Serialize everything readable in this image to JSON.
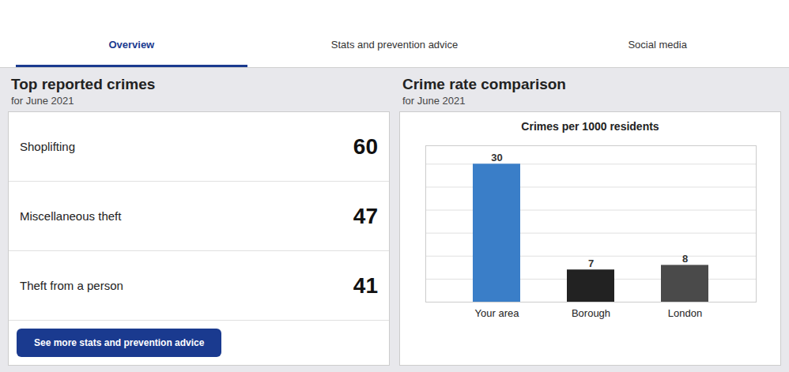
{
  "tabs": {
    "items": [
      "Overview",
      "Stats and prevention advice",
      "Social media"
    ],
    "active": "Overview"
  },
  "left_panel": {
    "title": "Top reported crimes",
    "subtitle": "for June 2021",
    "rows": [
      {
        "label": "Shoplifting",
        "value": 60
      },
      {
        "label": "Miscellaneous theft",
        "value": 47
      },
      {
        "label": "Theft from a person",
        "value": 41
      }
    ],
    "button": "See more stats and prevention advice"
  },
  "right_panel": {
    "title": "Crime rate comparison",
    "subtitle": "for June 2021"
  },
  "chart_data": {
    "type": "bar",
    "title": "Crimes per 1000 residents",
    "categories": [
      "Your area",
      "Borough",
      "London"
    ],
    "values": [
      30,
      7,
      8
    ],
    "colors": [
      "#3a7ec8",
      "#222222",
      "#4a4a4a"
    ],
    "ylim": [
      0,
      34
    ],
    "yticks": [
      5,
      10,
      15,
      20,
      25,
      30
    ],
    "grid": true,
    "data_labels": true,
    "tick_labels": "x"
  }
}
